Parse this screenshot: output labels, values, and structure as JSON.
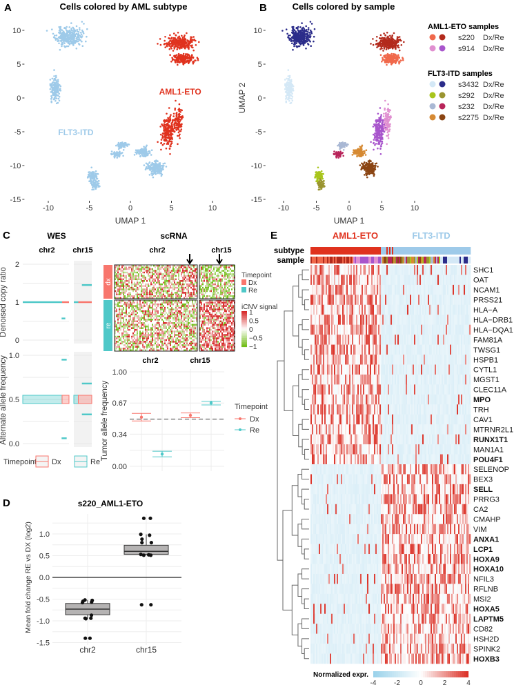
{
  "panels": {
    "A": "A",
    "B": "B",
    "C": "C",
    "D": "D",
    "E": "E"
  },
  "colors": {
    "aml1": "#e0321e",
    "flt3": "#9ecae9",
    "dx": "#f8766d",
    "re": "#4fc8c8"
  },
  "chart_data": [
    {
      "id": "A",
      "type": "scatter",
      "title": "Cells colored by AML subtype",
      "xlabel": "UMAP 1",
      "ylabel": "UMAP 2",
      "xlim": [
        -11,
        10.5
      ],
      "ylim": [
        -15.5,
        11.5
      ],
      "xticks": [
        "-10",
        "-5",
        "0",
        "5",
        "10"
      ],
      "yticks": [
        "10",
        "5",
        "0",
        "-5",
        "-10",
        "-15"
      ],
      "annotations": [
        {
          "text": "AML1-ETO",
          "x": 3.5,
          "y": 0.5,
          "color": "#e0321e"
        },
        {
          "text": "FLT3-ITD",
          "x": -8.8,
          "y": -5.5,
          "color": "#9ecae9"
        }
      ],
      "clusters": [
        {
          "sample": "s3432",
          "tp": "Re",
          "subtype": "FLT3-ITD",
          "center": [
            -7.5,
            9
          ],
          "spread": [
            1.4,
            1.2
          ],
          "n": 320
        },
        {
          "sample": "s3432",
          "tp": "Dx",
          "subtype": "FLT3-ITD",
          "center": [
            -9.2,
            1.5
          ],
          "spread": [
            0.5,
            1.6
          ],
          "n": 160
        },
        {
          "sample": "s292",
          "tp": "Dx",
          "subtype": "FLT3-ITD",
          "center": [
            -4.6,
            -11.5
          ],
          "spread": [
            0.6,
            0.7
          ],
          "n": 90
        },
        {
          "sample": "s292",
          "tp": "Re",
          "subtype": "FLT3-ITD",
          "center": [
            -4.3,
            -12.8
          ],
          "spread": [
            0.5,
            0.6
          ],
          "n": 60
        },
        {
          "sample": "s232",
          "tp": "Dx",
          "subtype": "FLT3-ITD",
          "center": [
            -1,
            -7
          ],
          "spread": [
            0.6,
            0.4
          ],
          "n": 70
        },
        {
          "sample": "s232",
          "tp": "Re",
          "subtype": "FLT3-ITD",
          "center": [
            -1.6,
            -8.3
          ],
          "spread": [
            0.5,
            0.4
          ],
          "n": 60
        },
        {
          "sample": "s2275",
          "tp": "Dx",
          "subtype": "FLT3-ITD",
          "center": [
            1.5,
            -8
          ],
          "spread": [
            0.9,
            0.6
          ],
          "n": 100
        },
        {
          "sample": "s2275",
          "tp": "Re",
          "subtype": "FLT3-ITD",
          "center": [
            3,
            -10.3
          ],
          "spread": [
            0.9,
            0.8
          ],
          "n": 200
        },
        {
          "sample": "s914",
          "tp": "Dx",
          "subtype": "AML1-ETO",
          "center": [
            5.8,
            -3.5
          ],
          "spread": [
            0.5,
            2
          ],
          "n": 120
        },
        {
          "sample": "s914",
          "tp": "Re",
          "subtype": "AML1-ETO",
          "center": [
            4.6,
            -5
          ],
          "spread": [
            0.7,
            2.2
          ],
          "n": 220
        },
        {
          "sample": "s220",
          "tp": "Dx",
          "subtype": "AML1-ETO",
          "center": [
            6.5,
            5.8
          ],
          "spread": [
            1.3,
            0.6
          ],
          "n": 200
        },
        {
          "sample": "s220",
          "tp": "Re",
          "subtype": "AML1-ETO",
          "center": [
            6,
            8.2
          ],
          "spread": [
            1.5,
            0.9
          ],
          "n": 260
        }
      ]
    },
    {
      "id": "B",
      "type": "scatter",
      "title": "Cells colored by sample",
      "xlabel": "UMAP 1",
      "ylabel": "UMAP 2",
      "legend": {
        "placement": "right",
        "groups": [
          {
            "title": "AML1-ETO samples",
            "items": [
              {
                "sample": "s220",
                "label": "Dx/Re",
                "dx": "#f0684b",
                "re": "#b32a1c"
              },
              {
                "sample": "s914",
                "label": "Dx/Re",
                "dx": "#e08fd0",
                "re": "#a855cc"
              }
            ]
          },
          {
            "title": "FLT3-ITD samples",
            "items": [
              {
                "sample": "s3432",
                "label": "Dx/Re",
                "dx": "#d4e8f6",
                "re": "#2b2c8a"
              },
              {
                "sample": "s292",
                "label": "Dx/Re",
                "dx": "#a8c51c",
                "re": "#9a9430"
              },
              {
                "sample": "s232",
                "label": "Dx/Re",
                "dx": "#a9b8d4",
                "re": "#b8245a"
              },
              {
                "sample": "s2275",
                "label": "Dx/Re",
                "dx": "#d68a33",
                "re": "#8b4513"
              }
            ]
          }
        ]
      }
    },
    {
      "id": "C-WES",
      "type": "line",
      "title": "WES",
      "facets": [
        "chr2",
        "chr15"
      ],
      "ylabel_top": "Denoised copy ratio",
      "yticks_top": [
        "2",
        "1",
        "0"
      ],
      "ylabel_bottom": "Alternate allele frequency",
      "yticks_bottom": [
        "1.0",
        "0.5",
        "0.0"
      ],
      "legend": {
        "title": "Timepoint",
        "items": [
          "Dx",
          "Re"
        ],
        "placement": "bottom"
      },
      "copy_ratio": [
        {
          "facet": "chr2",
          "tp": "Re",
          "y": 1.0,
          "from": 0,
          "to": 0.85
        },
        {
          "facet": "chr2",
          "tp": "Dx",
          "y": 1.0,
          "from": 0.85,
          "to": 1
        },
        {
          "facet": "chr2",
          "tp": "Re",
          "y": 0.57,
          "from": 0.84,
          "to": 0.92
        },
        {
          "facet": "chr15",
          "tp": "Re",
          "y": 1.45,
          "from": 0.45,
          "to": 1
        },
        {
          "facet": "chr15",
          "tp": "Re",
          "y": 1.0,
          "from": 0,
          "to": 0.25
        },
        {
          "facet": "chr15",
          "tp": "Dx",
          "y": 1.0,
          "from": 0.25,
          "to": 1
        }
      ],
      "allele_freq": [
        {
          "facet": "chr2",
          "tp": "Re",
          "y": 0.5,
          "from": 0,
          "to": 0.85
        },
        {
          "facet": "chr2",
          "tp": "Dx",
          "y": 0.5,
          "from": 0.85,
          "to": 1
        },
        {
          "facet": "chr2",
          "tp": "Re",
          "y": 0.95,
          "from": 0.84,
          "to": 0.95
        },
        {
          "facet": "chr2",
          "tp": "Re",
          "y": 0.06,
          "from": 0.84,
          "to": 0.95
        },
        {
          "facet": "chr15",
          "tp": "Re",
          "y": 0.68,
          "from": 0.45,
          "to": 1
        },
        {
          "facet": "chr15",
          "tp": "Re",
          "y": 0.33,
          "from": 0.45,
          "to": 1
        },
        {
          "facet": "chr15",
          "tp": "Re",
          "y": 0.5,
          "from": 0,
          "to": 0.25
        },
        {
          "facet": "chr15",
          "tp": "Dx",
          "y": 0.5,
          "from": 0.25,
          "to": 1
        }
      ]
    },
    {
      "id": "C-scRNA",
      "type": "heatmap",
      "title": "scRNA",
      "facets": [
        "chr2",
        "chr15"
      ],
      "rows": [
        "dx",
        "re"
      ],
      "legend_timepoint": {
        "title": "Timepoint",
        "items": [
          "Dx",
          "Re"
        ]
      },
      "legend_icnv": {
        "title": "iCNV signal",
        "ticks": [
          "1",
          "0.5",
          "0",
          "−0.5",
          "−1"
        ]
      },
      "arrow_marks": [
        "chr2",
        "chr15"
      ]
    },
    {
      "id": "C-TAF",
      "type": "scatter",
      "facets": [
        "chr2",
        "chr15"
      ],
      "ylabel": "Tumor allele frequency",
      "yticks": [
        "1.00",
        "0.67",
        "0.34",
        "0.00"
      ],
      "ylim": [
        0,
        1
      ],
      "reference_line": 0.5,
      "legend": {
        "title": "Timepoint",
        "items": [
          "Dx",
          "Re"
        ]
      },
      "points": [
        {
          "facet": "chr2",
          "tp": "Dx",
          "y": 0.52,
          "err": 0.04
        },
        {
          "facet": "chr2",
          "tp": "Re",
          "y": 0.13,
          "err": 0.03
        },
        {
          "facet": "chr15",
          "tp": "Dx",
          "y": 0.54,
          "err": 0.025
        },
        {
          "facet": "chr15",
          "tp": "Re",
          "y": 0.67,
          "err": 0.02
        }
      ]
    },
    {
      "id": "D",
      "type": "box",
      "title": "s220_AML1-ETO",
      "ylabel": "Mean fold change RE vs DX (log2)",
      "ylim": [
        -1.55,
        1.45
      ],
      "yticks": [
        "1.0",
        "0.5",
        "0.0",
        "-0.5",
        "-1.0",
        "-1.5"
      ],
      "categories": [
        "chr2",
        "chr15"
      ],
      "boxes": [
        {
          "q1": -0.86,
          "median": -0.73,
          "q3": -0.6,
          "wlo": -0.95,
          "whi": -0.52,
          "points": [
            -0.52,
            -0.53,
            -0.55,
            -0.57,
            -0.58,
            -0.87,
            -0.94,
            -0.94,
            -0.95,
            -1.4,
            -1.4
          ]
        },
        {
          "q1": 0.53,
          "median": 0.6,
          "q3": 0.74,
          "wlo": 0.51,
          "whi": 0.99,
          "points": [
            1.36,
            1.36,
            0.99,
            0.97,
            0.88,
            0.8,
            0.8,
            0.51,
            0.51,
            0.52,
            0.53,
            -0.63,
            -0.63
          ]
        }
      ]
    },
    {
      "id": "E",
      "type": "heatmap",
      "column_groups": [
        "AML1-ETO",
        "FLT3-ITD"
      ],
      "annotation_rows": [
        "subtype",
        "sample"
      ],
      "legend": {
        "title": "Normalized expr.",
        "ticks": [
          "-4",
          "-2",
          "0",
          "2",
          "4"
        ],
        "range": [
          -4,
          4
        ]
      },
      "genes": [
        {
          "name": "SHC1",
          "bold": false,
          "high": "AML1-ETO"
        },
        {
          "name": "OAT",
          "bold": false,
          "high": "AML1-ETO"
        },
        {
          "name": "NCAM1",
          "bold": false,
          "high": "AML1-ETO"
        },
        {
          "name": "PRSS21",
          "bold": false,
          "high": "AML1-ETO"
        },
        {
          "name": "HLA−A",
          "bold": false,
          "high": "AML1-ETO"
        },
        {
          "name": "HLA−DRB1",
          "bold": false,
          "high": "AML1-ETO"
        },
        {
          "name": "HLA−DQA1",
          "bold": false,
          "high": "AML1-ETO"
        },
        {
          "name": "FAM81A",
          "bold": false,
          "high": "AML1-ETO"
        },
        {
          "name": "TWSG1",
          "bold": false,
          "high": "AML1-ETO"
        },
        {
          "name": "HSPB1",
          "bold": false,
          "high": "AML1-ETO"
        },
        {
          "name": "CYTL1",
          "bold": false,
          "high": "AML1-ETO"
        },
        {
          "name": "MGST1",
          "bold": false,
          "high": "AML1-ETO"
        },
        {
          "name": "CLEC11A",
          "bold": false,
          "high": "AML1-ETO"
        },
        {
          "name": "MPO",
          "bold": true,
          "high": "AML1-ETO"
        },
        {
          "name": "TRH",
          "bold": false,
          "high": "AML1-ETO"
        },
        {
          "name": "CAV1",
          "bold": false,
          "high": "AML1-ETO"
        },
        {
          "name": "MTRNR2L1",
          "bold": false,
          "high": "AML1-ETO"
        },
        {
          "name": "RUNX1T1",
          "bold": true,
          "high": "AML1-ETO"
        },
        {
          "name": "MAN1A1",
          "bold": false,
          "high": "AML1-ETO"
        },
        {
          "name": "POU4F1",
          "bold": true,
          "high": "AML1-ETO"
        },
        {
          "name": "SELENOP",
          "bold": false,
          "high": "FLT3-ITD"
        },
        {
          "name": "BEX3",
          "bold": false,
          "high": "FLT3-ITD"
        },
        {
          "name": "SELL",
          "bold": true,
          "high": "FLT3-ITD"
        },
        {
          "name": "PRRG3",
          "bold": false,
          "high": "FLT3-ITD"
        },
        {
          "name": "CA2",
          "bold": false,
          "high": "FLT3-ITD"
        },
        {
          "name": "CMAHP",
          "bold": false,
          "high": "FLT3-ITD"
        },
        {
          "name": "VIM",
          "bold": false,
          "high": "FLT3-ITD"
        },
        {
          "name": "ANXA1",
          "bold": true,
          "high": "FLT3-ITD"
        },
        {
          "name": "LCP1",
          "bold": true,
          "high": "FLT3-ITD"
        },
        {
          "name": "HOXA9",
          "bold": true,
          "high": "FLT3-ITD"
        },
        {
          "name": "HOXA10",
          "bold": true,
          "high": "FLT3-ITD"
        },
        {
          "name": "NFIL3",
          "bold": false,
          "high": "FLT3-ITD"
        },
        {
          "name": "RFLNB",
          "bold": false,
          "high": "FLT3-ITD"
        },
        {
          "name": "MSI2",
          "bold": false,
          "high": "FLT3-ITD"
        },
        {
          "name": "HOXA5",
          "bold": true,
          "high": "FLT3-ITD"
        },
        {
          "name": "LAPTM5",
          "bold": true,
          "high": "FLT3-ITD"
        },
        {
          "name": "CD82",
          "bold": false,
          "high": "FLT3-ITD"
        },
        {
          "name": "HSH2D",
          "bold": false,
          "high": "FLT3-ITD"
        },
        {
          "name": "SPINK2",
          "bold": false,
          "high": "FLT3-ITD"
        },
        {
          "name": "HOXB3",
          "bold": true,
          "high": "FLT3-ITD"
        }
      ]
    }
  ]
}
